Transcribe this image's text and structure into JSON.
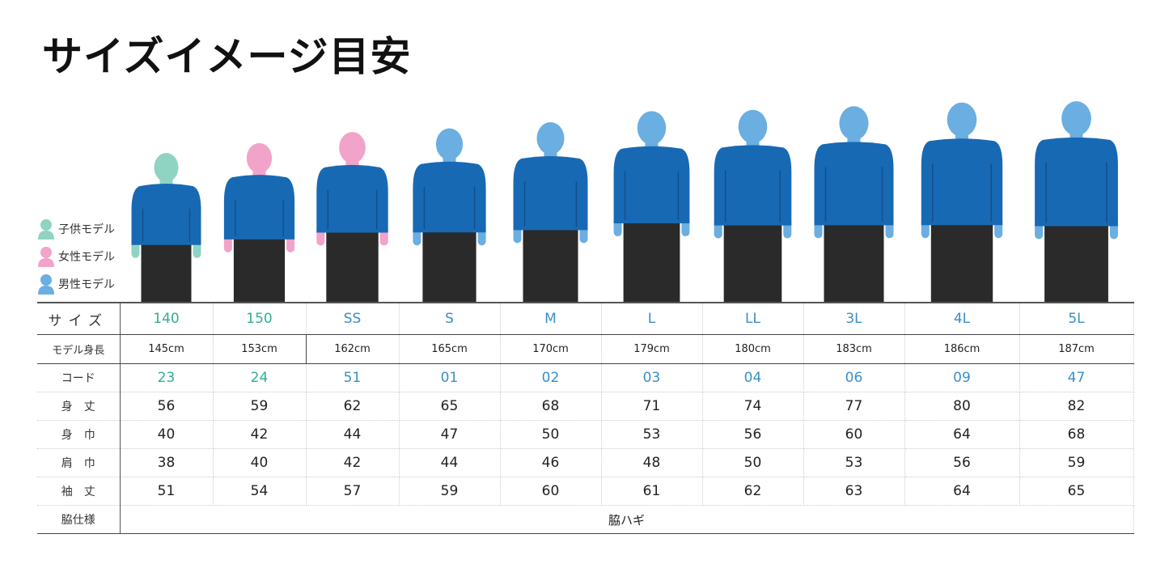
{
  "title": "サイズイメージ目安",
  "legend": [
    {
      "label": "子供モデル",
      "icon": "child-model-icon",
      "color": "#8fd3c3"
    },
    {
      "label": "女性モデル",
      "icon": "female-model-icon",
      "color": "#f2a3c9"
    },
    {
      "label": "男性モデル",
      "icon": "male-model-icon",
      "color": "#6aaee2"
    }
  ],
  "colors": {
    "shirt": "#1869b3",
    "shorts": "#2a2a2a",
    "kid_text": "#2fae97",
    "adult_text": "#3a8fc6"
  },
  "table": {
    "row_labels": {
      "size": "サイズ",
      "height": "モデル身長",
      "code": "コード",
      "length": "身　丈",
      "body_width": "身　巾",
      "shoulder": "肩　巾",
      "sleeve": "袖　丈",
      "side": "脇仕様"
    },
    "columns": [
      {
        "size": "140",
        "model": "child",
        "height": "145cm",
        "code": "23",
        "length": "56",
        "body_width": "40",
        "shoulder": "38",
        "sleeve": "51"
      },
      {
        "size": "150",
        "model": "female",
        "height": "153cm",
        "code": "24",
        "length": "59",
        "body_width": "42",
        "shoulder": "40",
        "sleeve": "54"
      },
      {
        "size": "SS",
        "model": "female",
        "height": "162cm",
        "code": "51",
        "length": "62",
        "body_width": "44",
        "shoulder": "42",
        "sleeve": "57"
      },
      {
        "size": "S",
        "model": "male",
        "height": "165cm",
        "code": "01",
        "length": "65",
        "body_width": "47",
        "shoulder": "44",
        "sleeve": "59"
      },
      {
        "size": "M",
        "model": "male",
        "height": "170cm",
        "code": "02",
        "length": "68",
        "body_width": "50",
        "shoulder": "46",
        "sleeve": "60"
      },
      {
        "size": "L",
        "model": "male",
        "height": "179cm",
        "code": "03",
        "length": "71",
        "body_width": "53",
        "shoulder": "48",
        "sleeve": "61"
      },
      {
        "size": "LL",
        "model": "male",
        "height": "180cm",
        "code": "04",
        "length": "74",
        "body_width": "56",
        "shoulder": "50",
        "sleeve": "62"
      },
      {
        "size": "3L",
        "model": "male",
        "height": "183cm",
        "code": "06",
        "length": "77",
        "body_width": "60",
        "shoulder": "53",
        "sleeve": "63"
      },
      {
        "size": "4L",
        "model": "male",
        "height": "186cm",
        "code": "09",
        "length": "80",
        "body_width": "64",
        "shoulder": "56",
        "sleeve": "64"
      },
      {
        "size": "5L",
        "model": "male",
        "height": "187cm",
        "code": "47",
        "length": "82",
        "body_width": "68",
        "shoulder": "59",
        "sleeve": "65"
      }
    ],
    "side_value": "脇ハギ"
  }
}
